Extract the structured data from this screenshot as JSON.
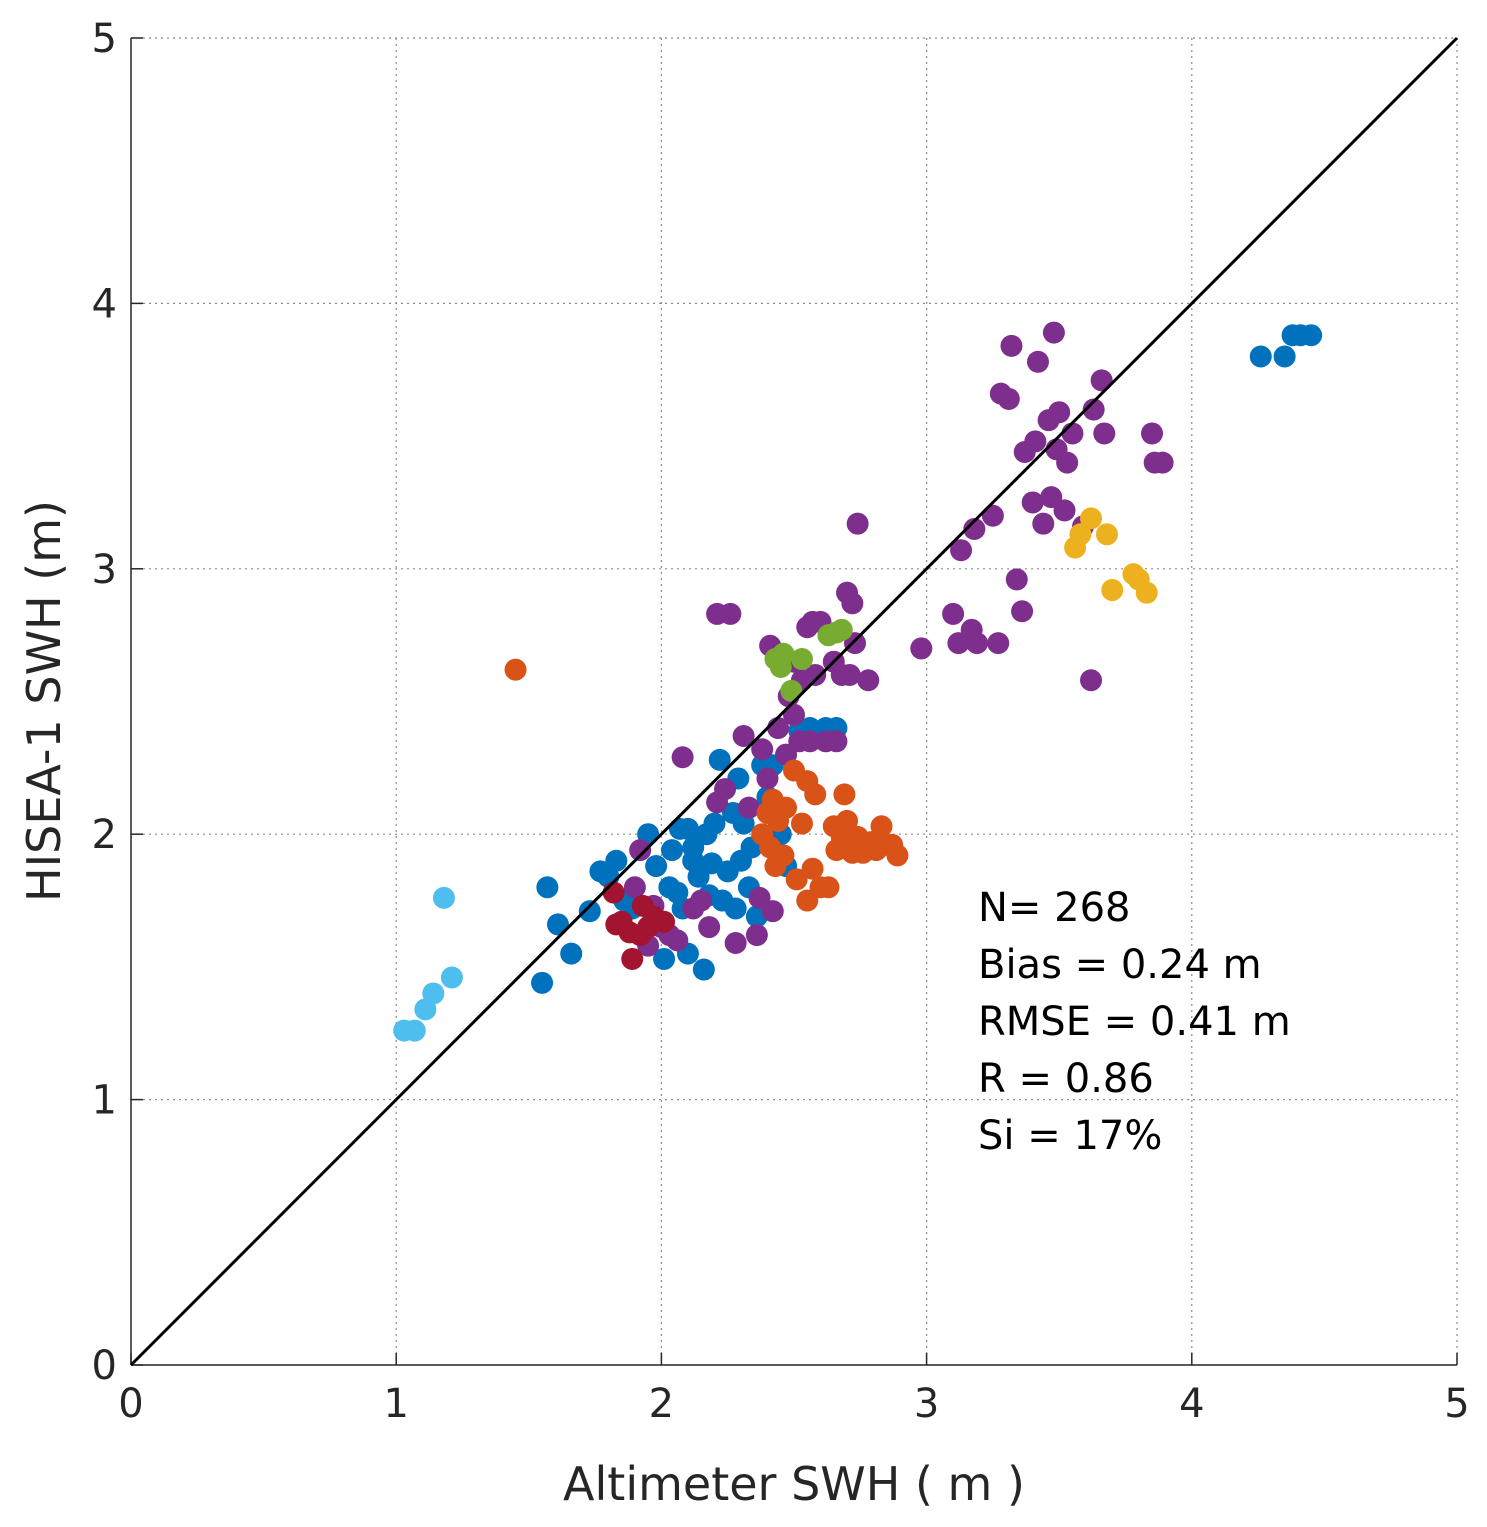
{
  "chart_data": {
    "type": "scatter",
    "title": "",
    "xlabel": "Altimeter SWH ( m )",
    "ylabel": "HISEA-1 SWH (m)",
    "xlim": [
      0,
      5
    ],
    "ylim": [
      0,
      5
    ],
    "xticks": [
      "0",
      "1",
      "2",
      "3",
      "4",
      "5"
    ],
    "yticks": [
      "0",
      "1",
      "2",
      "3",
      "4",
      "5"
    ],
    "grid": true,
    "reference_line": {
      "from": [
        0,
        0
      ],
      "to": [
        5,
        5
      ],
      "color": "#000000"
    },
    "stats": [
      "N= 268",
      "Bias = 0.24 m",
      "RMSE = 0.41 m",
      "R = 0.86",
      "Si = 17%"
    ],
    "series": [
      {
        "color": "#0072bd",
        "points": [
          [
            1.55,
            1.44
          ],
          [
            1.57,
            1.8
          ],
          [
            1.61,
            1.66
          ],
          [
            1.66,
            1.55
          ],
          [
            1.73,
            1.71
          ],
          [
            1.77,
            1.86
          ],
          [
            1.8,
            1.84
          ],
          [
            1.83,
            1.9
          ],
          [
            1.86,
            1.75
          ],
          [
            1.89,
            1.72
          ],
          [
            1.95,
            2.0
          ],
          [
            1.98,
            1.88
          ],
          [
            2.01,
            1.53
          ],
          [
            2.03,
            1.8
          ],
          [
            2.04,
            1.94
          ],
          [
            2.06,
            1.78
          ],
          [
            2.07,
            2.02
          ],
          [
            2.08,
            1.72
          ],
          [
            2.1,
            1.55
          ],
          [
            2.1,
            2.02
          ],
          [
            2.12,
            1.9
          ],
          [
            2.12,
            1.95
          ],
          [
            2.14,
            1.84
          ],
          [
            2.16,
            1.49
          ],
          [
            2.17,
            2.0
          ],
          [
            2.18,
            1.77
          ],
          [
            2.19,
            1.89
          ],
          [
            2.2,
            2.04
          ],
          [
            2.22,
            2.28
          ],
          [
            2.23,
            1.75
          ],
          [
            2.25,
            1.86
          ],
          [
            2.27,
            2.08
          ],
          [
            2.28,
            1.72
          ],
          [
            2.29,
            2.21
          ],
          [
            2.3,
            1.9
          ],
          [
            2.31,
            2.04
          ],
          [
            2.33,
            1.8
          ],
          [
            2.34,
            1.95
          ],
          [
            2.36,
            1.69
          ],
          [
            2.38,
            2.26
          ],
          [
            2.4,
            2.14
          ],
          [
            2.42,
            2.26
          ],
          [
            2.45,
            2.0
          ],
          [
            2.47,
            1.88
          ],
          [
            2.52,
            2.39
          ],
          [
            2.56,
            2.4
          ],
          [
            2.62,
            2.4
          ],
          [
            2.66,
            2.4
          ],
          [
            4.26,
            3.8
          ],
          [
            4.35,
            3.8
          ],
          [
            4.38,
            3.88
          ],
          [
            4.41,
            3.88
          ],
          [
            4.45,
            3.88
          ]
        ]
      },
      {
        "color": "#7e2f8e",
        "points": [
          [
            1.9,
            1.8
          ],
          [
            1.92,
            1.94
          ],
          [
            1.95,
            1.58
          ],
          [
            1.97,
            1.73
          ],
          [
            2.0,
            1.65
          ],
          [
            2.03,
            1.62
          ],
          [
            2.06,
            1.6
          ],
          [
            2.08,
            2.29
          ],
          [
            2.12,
            1.72
          ],
          [
            2.15,
            1.75
          ],
          [
            2.18,
            1.65
          ],
          [
            2.21,
            2.12
          ],
          [
            2.21,
            2.83
          ],
          [
            2.24,
            2.17
          ],
          [
            2.26,
            2.83
          ],
          [
            2.28,
            1.59
          ],
          [
            2.31,
            2.37
          ],
          [
            2.33,
            2.1
          ],
          [
            2.36,
            1.62
          ],
          [
            2.37,
            1.76
          ],
          [
            2.38,
            2.32
          ],
          [
            2.4,
            2.21
          ],
          [
            2.41,
            2.71
          ],
          [
            2.42,
            1.71
          ],
          [
            2.44,
            2.4
          ],
          [
            2.45,
            2.68
          ],
          [
            2.47,
            2.3
          ],
          [
            2.48,
            2.52
          ],
          [
            2.5,
            2.45
          ],
          [
            2.5,
            2.65
          ],
          [
            2.52,
            2.35
          ],
          [
            2.53,
            2.58
          ],
          [
            2.55,
            2.78
          ],
          [
            2.56,
            2.35
          ],
          [
            2.57,
            2.8
          ],
          [
            2.58,
            2.6
          ],
          [
            2.6,
            2.8
          ],
          [
            2.62,
            2.35
          ],
          [
            2.63,
            2.75
          ],
          [
            2.65,
            2.65
          ],
          [
            2.66,
            2.35
          ],
          [
            2.68,
            2.6
          ],
          [
            2.7,
            2.91
          ],
          [
            2.71,
            2.6
          ],
          [
            2.72,
            2.87
          ],
          [
            2.73,
            2.72
          ],
          [
            2.74,
            3.17
          ],
          [
            2.78,
            2.58
          ],
          [
            2.98,
            2.7
          ],
          [
            3.1,
            2.83
          ],
          [
            3.12,
            2.72
          ],
          [
            3.13,
            3.07
          ],
          [
            3.17,
            2.77
          ],
          [
            3.19,
            2.72
          ],
          [
            3.18,
            3.15
          ],
          [
            3.25,
            3.2
          ],
          [
            3.27,
            2.72
          ],
          [
            3.28,
            3.66
          ],
          [
            3.31,
            3.64
          ],
          [
            3.32,
            3.84
          ],
          [
            3.34,
            2.96
          ],
          [
            3.36,
            2.84
          ],
          [
            3.37,
            3.44
          ],
          [
            3.4,
            3.25
          ],
          [
            3.41,
            3.48
          ],
          [
            3.42,
            3.78
          ],
          [
            3.44,
            3.17
          ],
          [
            3.46,
            3.56
          ],
          [
            3.47,
            3.27
          ],
          [
            3.48,
            3.89
          ],
          [
            3.49,
            3.45
          ],
          [
            3.5,
            3.59
          ],
          [
            3.52,
            3.22
          ],
          [
            3.53,
            3.4
          ],
          [
            3.55,
            3.51
          ],
          [
            3.59,
            3.16
          ],
          [
            3.62,
            2.58
          ],
          [
            3.63,
            3.6
          ],
          [
            3.66,
            3.71
          ],
          [
            3.67,
            3.51
          ],
          [
            3.85,
            3.51
          ],
          [
            3.86,
            3.4
          ],
          [
            3.89,
            3.4
          ]
        ]
      },
      {
        "color": "#d95319",
        "points": [
          [
            1.45,
            2.62
          ],
          [
            2.38,
            2.0
          ],
          [
            2.4,
            2.08
          ],
          [
            2.41,
            1.95
          ],
          [
            2.42,
            2.13
          ],
          [
            2.43,
            1.88
          ],
          [
            2.44,
            2.05
          ],
          [
            2.46,
            1.92
          ],
          [
            2.47,
            2.1
          ],
          [
            2.5,
            2.24
          ],
          [
            2.51,
            1.83
          ],
          [
            2.53,
            2.04
          ],
          [
            2.55,
            1.75
          ],
          [
            2.55,
            2.2
          ],
          [
            2.57,
            1.87
          ],
          [
            2.58,
            2.15
          ],
          [
            2.6,
            1.8
          ],
          [
            2.63,
            1.8
          ],
          [
            2.65,
            2.03
          ],
          [
            2.66,
            1.94
          ],
          [
            2.68,
            1.99
          ],
          [
            2.69,
            2.15
          ],
          [
            2.7,
            2.05
          ],
          [
            2.72,
            1.93
          ],
          [
            2.74,
            1.99
          ],
          [
            2.76,
            1.93
          ],
          [
            2.79,
            1.97
          ],
          [
            2.81,
            1.94
          ],
          [
            2.83,
            2.03
          ],
          [
            2.85,
            1.96
          ],
          [
            2.87,
            1.96
          ],
          [
            2.89,
            1.92
          ]
        ]
      },
      {
        "color": "#edb120",
        "points": [
          [
            3.56,
            3.08
          ],
          [
            3.58,
            3.13
          ],
          [
            3.62,
            3.19
          ],
          [
            3.68,
            3.13
          ],
          [
            3.7,
            2.92
          ],
          [
            3.78,
            2.98
          ],
          [
            3.8,
            2.96
          ],
          [
            3.83,
            2.91
          ]
        ]
      },
      {
        "color": "#77ac30",
        "points": [
          [
            2.43,
            2.66
          ],
          [
            2.45,
            2.63
          ],
          [
            2.46,
            2.68
          ],
          [
            2.49,
            2.54
          ],
          [
            2.53,
            2.66
          ],
          [
            2.63,
            2.75
          ],
          [
            2.66,
            2.76
          ],
          [
            2.68,
            2.77
          ]
        ]
      },
      {
        "color": "#a2142f",
        "points": [
          [
            1.82,
            1.78
          ],
          [
            1.83,
            1.66
          ],
          [
            1.85,
            1.67
          ],
          [
            1.88,
            1.63
          ],
          [
            1.89,
            1.53
          ],
          [
            1.92,
            1.62
          ],
          [
            1.93,
            1.73
          ],
          [
            1.95,
            1.65
          ],
          [
            1.97,
            1.69
          ],
          [
            2.01,
            1.67
          ]
        ]
      },
      {
        "color": "#4dbeee",
        "points": [
          [
            1.03,
            1.26
          ],
          [
            1.07,
            1.26
          ],
          [
            1.11,
            1.34
          ],
          [
            1.14,
            1.4
          ],
          [
            1.18,
            1.76
          ],
          [
            1.21,
            1.46
          ]
        ]
      }
    ]
  }
}
